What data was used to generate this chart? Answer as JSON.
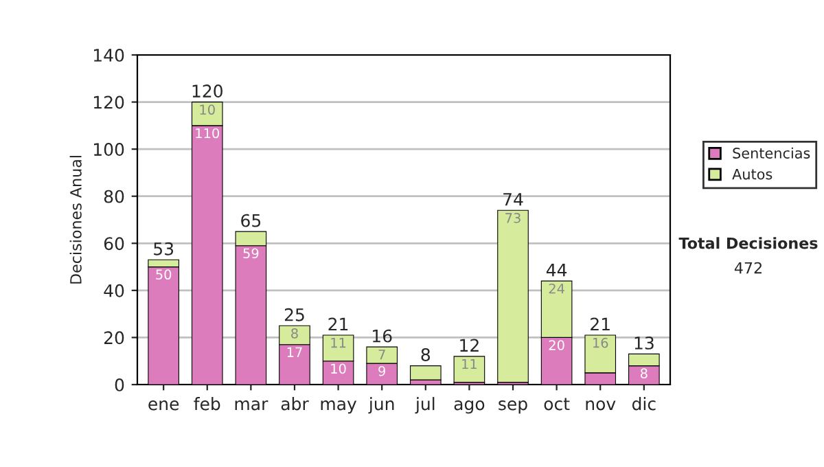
{
  "chart_data": {
    "type": "bar",
    "stacked": true,
    "ylabel": "Decisiones Anual",
    "categories": [
      "ene",
      "feb",
      "mar",
      "abr",
      "may",
      "jun",
      "jul",
      "ago",
      "sep",
      "oct",
      "nov",
      "dic"
    ],
    "series": [
      {
        "name": "Sentencias",
        "color": "#dd7cbd",
        "values": [
          50,
          110,
          59,
          17,
          10,
          9,
          2,
          1,
          1,
          20,
          5,
          8
        ],
        "value_labels": [
          "50",
          "110",
          "59",
          "17",
          "10",
          "9",
          null,
          null,
          null,
          "20",
          null,
          "8"
        ]
      },
      {
        "name": "Autos",
        "color": "#d6ec9c",
        "values": [
          3,
          10,
          6,
          8,
          11,
          7,
          6,
          11,
          73,
          24,
          16,
          5
        ],
        "value_labels": [
          null,
          "10",
          null,
          "8",
          "11",
          "7",
          null,
          "11",
          "73",
          "24",
          "16",
          null
        ]
      }
    ],
    "totals": [
      "53",
      "120",
      "65",
      "25",
      "21",
      "16",
      "8",
      "12",
      "74",
      "44",
      "21",
      "13"
    ],
    "ylim": [
      0,
      140
    ],
    "yticks": [
      0,
      20,
      40,
      60,
      80,
      100,
      120,
      140
    ],
    "grid": "y",
    "legend": "right",
    "annotations": [
      "Total Decisiones",
      "472"
    ]
  }
}
